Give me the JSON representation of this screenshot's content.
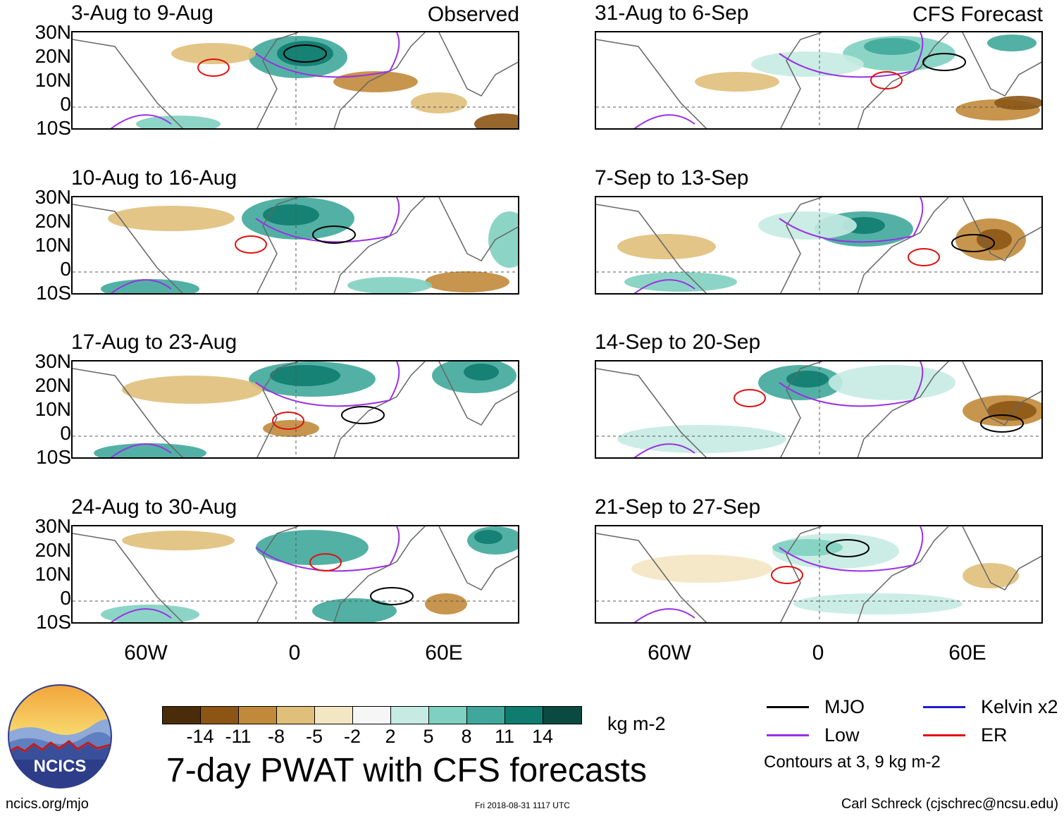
{
  "headers": {
    "observed": "Observed",
    "forecast": "CFS Forecast"
  },
  "panels_left": [
    "3-Aug to 9-Aug",
    "10-Aug to 16-Aug",
    "17-Aug to 23-Aug",
    "24-Aug to 30-Aug"
  ],
  "panels_right": [
    "31-Aug to 6-Sep",
    "7-Sep to 13-Sep",
    "14-Sep to 20-Sep",
    "21-Sep to 27-Sep"
  ],
  "lat_labels": [
    "30N",
    "20N",
    "10N",
    "0",
    "10S"
  ],
  "lon_labels": [
    "60W",
    "0",
    "60E"
  ],
  "colorbar": {
    "colors": [
      "#4a2c08",
      "#8c5516",
      "#c18a3a",
      "#e0bf7a",
      "#f3e6c2",
      "#f6f6f6",
      "#c5ebe2",
      "#7fd0c0",
      "#3fa89a",
      "#0f7c70",
      "#0a4a40"
    ],
    "labels": [
      "-14",
      "-11",
      "-8",
      "-5",
      "-2",
      "2",
      "5",
      "8",
      "11",
      "14"
    ],
    "units": "kg m-2"
  },
  "title": "7-day PWAT with CFS forecasts",
  "legend": {
    "items": [
      {
        "label": "MJO",
        "color": "#000000"
      },
      {
        "label": "Kelvin x2",
        "color": "#1d1dcc"
      },
      {
        "label": "Low",
        "color": "#9b30e6"
      },
      {
        "label": "ER",
        "color": "#e01010"
      }
    ],
    "note": "Contours at 3, 9 kg m-2"
  },
  "logo_text": "NCICS",
  "footer": {
    "left": "ncics.org/mjo",
    "middle": "Fri 2018-08-31 1117 UTC",
    "right": "Carl Schreck (cjschrec@ncsu.edu)"
  }
}
